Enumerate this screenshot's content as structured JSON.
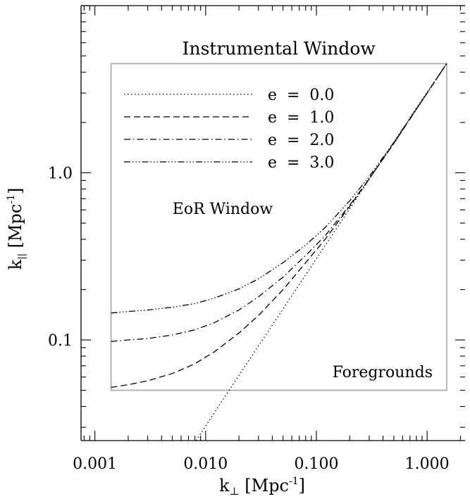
{
  "chart_data": {
    "type": "line",
    "xlabel_main": "k",
    "xlabel_sub": "⊥",
    "xlabel_unit": " [Mpc",
    "xlabel_exp": "-1",
    "xlabel_close": "]",
    "ylabel_main": "k",
    "ylabel_sub": "||",
    "ylabel_unit": " [Mpc",
    "ylabel_exp": "-1",
    "ylabel_close": "]",
    "x_scale": "log",
    "y_scale": "log",
    "xlim": [
      0.00075,
      2.2
    ],
    "ylim": [
      0.025,
      10.0
    ],
    "x_ticks": [
      {
        "value": 0.001,
        "label": "0.001"
      },
      {
        "value": 0.01,
        "label": "0.010"
      },
      {
        "value": 0.1,
        "label": "0.100"
      },
      {
        "value": 1.0,
        "label": "1.000"
      }
    ],
    "y_ticks": [
      {
        "value": 0.1,
        "label": "0.1"
      },
      {
        "value": 1.0,
        "label": "1.0"
      }
    ],
    "instrumental_window": {
      "label": "Instrumental Window",
      "color": "#b4b4b4",
      "x_range": [
        0.0014,
        1.5
      ],
      "y_range": [
        0.05,
        4.5
      ]
    },
    "annotations": {
      "eor_window": "EoR Window",
      "foregrounds": "Foregrounds"
    },
    "series": [
      {
        "name": "e  =  0.0",
        "dash": "1.5,3.5",
        "x": [
          0.0082,
          0.015,
          0.03,
          0.06,
          0.1,
          0.2,
          0.4,
          0.8,
          1.5
        ],
        "y": [
          0.025,
          0.046,
          0.092,
          0.184,
          0.306,
          0.61,
          1.22,
          2.44,
          4.5
        ]
      },
      {
        "name": "e  =  1.0",
        "dash": "9,5",
        "x": [
          0.0014,
          0.002,
          0.003,
          0.005,
          0.008,
          0.012,
          0.02,
          0.03,
          0.05,
          0.08,
          0.12,
          0.2,
          0.3,
          0.5,
          0.8,
          1.2,
          1.5
        ],
        "y": [
          0.052,
          0.054,
          0.057,
          0.063,
          0.072,
          0.085,
          0.11,
          0.14,
          0.2,
          0.29,
          0.4,
          0.63,
          0.92,
          1.5,
          2.4,
          3.6,
          4.5
        ]
      },
      {
        "name": "e  =  2.0",
        "dash": "9,4,1.5,4",
        "x": [
          0.0014,
          0.002,
          0.003,
          0.005,
          0.008,
          0.012,
          0.02,
          0.03,
          0.05,
          0.08,
          0.12,
          0.2,
          0.3,
          0.5,
          0.8,
          1.2,
          1.5
        ],
        "y": [
          0.098,
          0.1,
          0.102,
          0.107,
          0.115,
          0.127,
          0.151,
          0.181,
          0.238,
          0.32,
          0.42,
          0.64,
          0.92,
          1.5,
          2.4,
          3.6,
          4.5
        ]
      },
      {
        "name": "e  =  3.0",
        "dash": "9,3,1.5,3,1.5,3,1.5,3",
        "x": [
          0.0014,
          0.002,
          0.003,
          0.005,
          0.008,
          0.012,
          0.02,
          0.03,
          0.05,
          0.08,
          0.12,
          0.2,
          0.3,
          0.5,
          0.8,
          1.2,
          1.5
        ],
        "y": [
          0.145,
          0.148,
          0.151,
          0.157,
          0.165,
          0.178,
          0.202,
          0.232,
          0.29,
          0.37,
          0.47,
          0.68,
          0.95,
          1.52,
          2.41,
          3.6,
          4.5
        ]
      }
    ]
  }
}
